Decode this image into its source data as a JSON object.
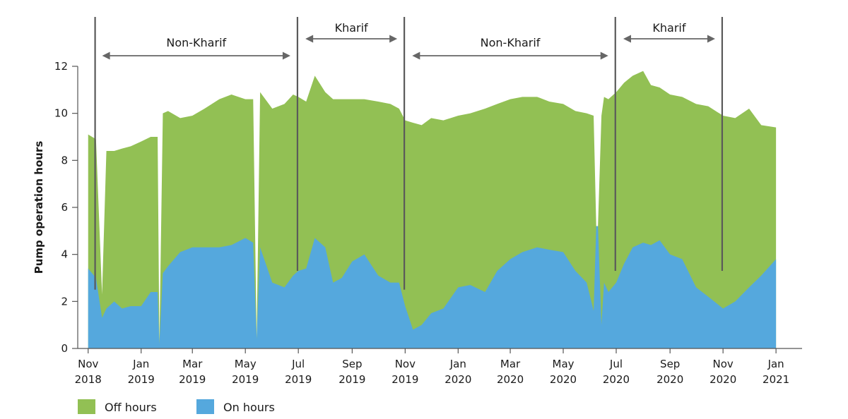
{
  "chart_data": {
    "type": "area",
    "title": "",
    "xlabel": "",
    "ylabel": "Pump operation hours",
    "ylim": [
      0,
      12
    ],
    "yticks": [
      0,
      2,
      4,
      6,
      8,
      10,
      12
    ],
    "xlim": [
      "2018-10-20",
      "2021-01-31"
    ],
    "stacked": true,
    "xticks": [
      {
        "date": "2018-11-01",
        "line1": "Nov",
        "line2": "2018"
      },
      {
        "date": "2019-01-01",
        "line1": "Jan",
        "line2": "2019"
      },
      {
        "date": "2019-03-01",
        "line1": "Mar",
        "line2": "2019"
      },
      {
        "date": "2019-05-01",
        "line1": "May",
        "line2": "2019"
      },
      {
        "date": "2019-07-01",
        "line1": "Jul",
        "line2": "2019"
      },
      {
        "date": "2019-09-01",
        "line1": "Sep",
        "line2": "2019"
      },
      {
        "date": "2019-11-01",
        "line1": "Nov",
        "line2": "2019"
      },
      {
        "date": "2020-01-01",
        "line1": "Jan",
        "line2": "2020"
      },
      {
        "date": "2020-03-01",
        "line1": "Mar",
        "line2": "2020"
      },
      {
        "date": "2020-05-01",
        "line1": "May",
        "line2": "2020"
      },
      {
        "date": "2020-07-01",
        "line1": "Jul",
        "line2": "2020"
      },
      {
        "date": "2020-09-01",
        "line1": "Sep",
        "line2": "2020"
      },
      {
        "date": "2020-11-01",
        "line1": "Nov",
        "line2": "2020"
      },
      {
        "date": "2021-01-01",
        "line1": "Jan",
        "line2": "2021"
      }
    ],
    "x": [
      "2018-11-01",
      "2018-11-10",
      "2018-11-17",
      "2018-11-22",
      "2018-12-01",
      "2018-12-10",
      "2018-12-20",
      "2019-01-01",
      "2019-01-12",
      "2019-01-20",
      "2019-01-22",
      "2019-01-26",
      "2019-02-01",
      "2019-02-15",
      "2019-03-01",
      "2019-03-15",
      "2019-04-01",
      "2019-04-15",
      "2019-05-01",
      "2019-05-10",
      "2019-05-14",
      "2019-05-18",
      "2019-06-01",
      "2019-06-15",
      "2019-06-25",
      "2019-07-01",
      "2019-07-10",
      "2019-07-20",
      "2019-08-01",
      "2019-08-10",
      "2019-08-20",
      "2019-09-01",
      "2019-09-15",
      "2019-10-01",
      "2019-10-15",
      "2019-10-25",
      "2019-11-01",
      "2019-11-10",
      "2019-11-20",
      "2019-12-01",
      "2019-12-15",
      "2020-01-01",
      "2020-01-15",
      "2020-02-01",
      "2020-02-15",
      "2020-03-01",
      "2020-03-15",
      "2020-04-01",
      "2020-04-15",
      "2020-05-01",
      "2020-05-15",
      "2020-05-28",
      "2020-06-05",
      "2020-06-08",
      "2020-06-10",
      "2020-06-14",
      "2020-06-17",
      "2020-06-22",
      "2020-07-01",
      "2020-07-10",
      "2020-07-20",
      "2020-08-01",
      "2020-08-10",
      "2020-08-20",
      "2020-09-01",
      "2020-09-15",
      "2020-10-01",
      "2020-10-15",
      "2020-11-01",
      "2020-11-15",
      "2020-12-01",
      "2020-12-15",
      "2021-01-01"
    ],
    "series": [
      {
        "name": "Off hours",
        "color": "#92c054",
        "values": [
          5.7,
          5.9,
          1.0,
          6.7,
          6.4,
          6.8,
          6.8,
          7.0,
          6.6,
          6.6,
          0.0,
          6.8,
          6.6,
          5.7,
          5.6,
          5.9,
          6.3,
          6.4,
          5.9,
          6.1,
          0.0,
          6.6,
          7.4,
          7.8,
          7.7,
          7.4,
          7.1,
          6.9,
          6.6,
          7.8,
          7.6,
          6.9,
          6.6,
          7.4,
          7.6,
          7.4,
          7.9,
          8.8,
          8.5,
          8.3,
          8.0,
          7.3,
          7.3,
          7.8,
          7.1,
          6.8,
          6.6,
          6.4,
          6.3,
          6.3,
          6.8,
          7.2,
          8.3,
          0.0,
          0.0,
          8.9,
          7.9,
          8.2,
          8.1,
          7.7,
          7.3,
          7.3,
          6.8,
          6.5,
          6.8,
          6.9,
          7.8,
          8.1,
          8.2,
          7.8,
          7.6,
          6.4,
          5.6
        ]
      },
      {
        "name": "On hours",
        "color": "#55a8dd",
        "values": [
          3.4,
          3.0,
          1.3,
          1.7,
          2.0,
          1.7,
          1.8,
          1.8,
          2.4,
          2.4,
          0.2,
          3.2,
          3.5,
          4.1,
          4.3,
          4.3,
          4.3,
          4.4,
          4.7,
          4.5,
          0.4,
          4.3,
          2.8,
          2.6,
          3.1,
          3.3,
          3.4,
          4.7,
          4.3,
          2.8,
          3.0,
          3.7,
          4.0,
          3.1,
          2.8,
          2.8,
          1.8,
          0.8,
          1.0,
          1.5,
          1.7,
          2.6,
          2.7,
          2.4,
          3.3,
          3.8,
          4.1,
          4.3,
          4.2,
          4.1,
          3.3,
          2.8,
          1.6,
          5.2,
          5.2,
          1.0,
          2.8,
          2.4,
          2.8,
          3.6,
          4.3,
          4.5,
          4.4,
          4.6,
          4.0,
          3.8,
          2.6,
          2.2,
          1.7,
          2.0,
          2.6,
          3.1,
          3.8
        ]
      }
    ],
    "periods": [
      {
        "label": "Non-Kharif",
        "start": "2018-11-09",
        "end": "2019-06-30"
      },
      {
        "label": "Kharif",
        "start": "2019-07-01",
        "end": "2019-10-31"
      },
      {
        "label": "Non-Kharif",
        "start": "2019-11-01",
        "end": "2020-06-30"
      },
      {
        "label": "Kharif",
        "start": "2020-07-01",
        "end": "2020-10-31"
      }
    ],
    "boundaries": [
      {
        "date": "2018-11-09",
        "bottom": 2.5
      },
      {
        "date": "2019-06-30",
        "bottom": 3.3
      },
      {
        "date": "2019-10-31",
        "bottom": 2.5
      },
      {
        "date": "2020-06-30",
        "bottom": 3.3
      },
      {
        "date": "2020-10-31",
        "bottom": 3.3
      }
    ],
    "grid": false,
    "legend_position": "bottom-left",
    "legend": [
      {
        "label": "Off hours",
        "color": "#92c054"
      },
      {
        "label": "On hours",
        "color": "#55a8dd"
      }
    ]
  }
}
